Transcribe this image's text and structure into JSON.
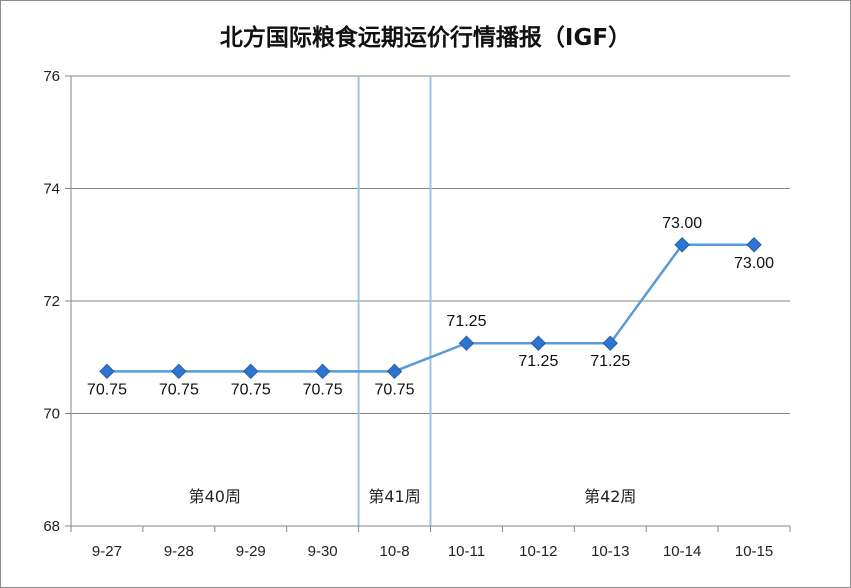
{
  "chart_data": {
    "type": "line",
    "title": "北方国际粮食远期运价行情播报（IGF）",
    "categories": [
      "9-27",
      "9-28",
      "9-29",
      "9-30",
      "10-8",
      "10-11",
      "10-12",
      "10-13",
      "10-14",
      "10-15"
    ],
    "series": [
      {
        "values": [
          70.75,
          70.75,
          70.75,
          70.75,
          70.75,
          71.25,
          71.25,
          71.25,
          73.0,
          73.0
        ]
      }
    ],
    "data_labels": [
      "70.75",
      "70.75",
      "70.75",
      "70.75",
      "70.75",
      "71.25",
      "71.25",
      "71.25",
      "73.00",
      "73.00"
    ],
    "ylim": [
      68,
      76
    ],
    "yticks": [
      "68",
      "70",
      "72",
      "74",
      "76"
    ],
    "grid": true,
    "week_dividers_after_category_index": [
      3,
      4
    ],
    "week_labels": [
      "第40周",
      "第41周",
      "第42周"
    ],
    "colors": {
      "line": "#5b9bd5",
      "marker": "#2e75d2",
      "marker_edge": "#1f5fa8",
      "divider": "#9dc3e6",
      "grid": "#868686"
    }
  }
}
